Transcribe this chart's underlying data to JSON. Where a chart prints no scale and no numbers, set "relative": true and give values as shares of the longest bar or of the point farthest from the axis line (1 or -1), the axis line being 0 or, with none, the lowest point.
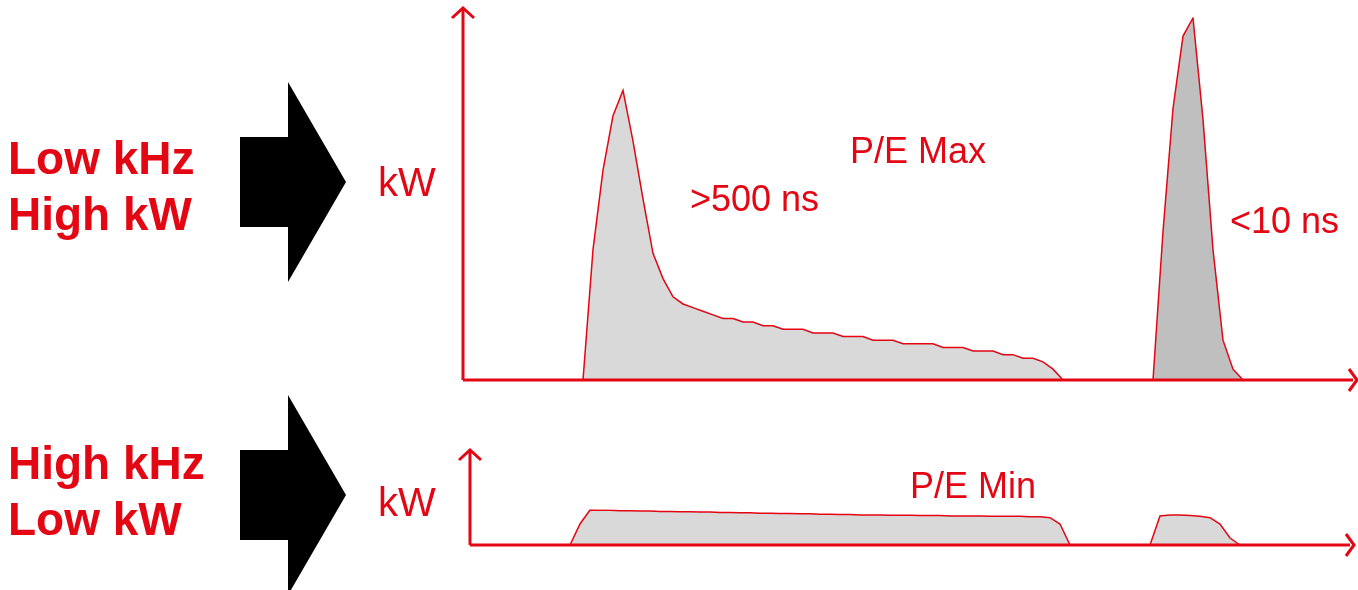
{
  "chart_data": [
    {
      "type": "area",
      "title": "Low kHz High kW",
      "ylabel": "kW",
      "relative": true,
      "marker": "none",
      "annotations": [
        ">500 ns",
        "P/E Max",
        "<10 ns"
      ],
      "categories": [
        null,
        null,
        null,
        null,
        null,
        null,
        null,
        null,
        null,
        null,
        null,
        null,
        null,
        null,
        null,
        null,
        null,
        null,
        null,
        null,
        null,
        null,
        null,
        null,
        null,
        null,
        null,
        null,
        null,
        null,
        null,
        null,
        null,
        null,
        null,
        null,
        null,
        null,
        null,
        null,
        null,
        null,
        null,
        null,
        null,
        null,
        null,
        null,
        null,
        null,
        null,
        null,
        null,
        null,
        null,
        null,
        null,
        null,
        null,
        null,
        null,
        null,
        null,
        null,
        null,
        null,
        null,
        null,
        null,
        null,
        null,
        null,
        null,
        null,
        null,
        null,
        null,
        null,
        null,
        null,
        null,
        null,
        null,
        null,
        null,
        null,
        null,
        null,
        null,
        null
      ],
      "series": [
        {
          "color": "#d9d9d9",
          "values": [
            null,
            null,
            null,
            null,
            null,
            null,
            null,
            null,
            null,
            null,
            null,
            null,
            0,
            0.36,
            0.58,
            0.73,
            0.8,
            0.66,
            0.5,
            0.35,
            0.28,
            0.23,
            0.21,
            0.2,
            0.19,
            0.18,
            0.17,
            0.17,
            0.16,
            0.16,
            0.15,
            0.15,
            0.14,
            0.14,
            0.14,
            0.13,
            0.13,
            0.13,
            0.12,
            0.12,
            0.12,
            0.11,
            0.11,
            0.11,
            0.1,
            0.1,
            0.1,
            0.1,
            0.09,
            0.09,
            0.09,
            0.08,
            0.08,
            0.08,
            0.07,
            0.07,
            0.06,
            0.06,
            0.05,
            0.03,
            0,
            null,
            null,
            null,
            null,
            null,
            null,
            null,
            null,
            null,
            null,
            null,
            null,
            null,
            null,
            null,
            null,
            null,
            null,
            null,
            null,
            null,
            null,
            null,
            null,
            null,
            null,
            null,
            null,
            null
          ]
        },
        {
          "color": "#bfbfbf",
          "values": [
            null,
            null,
            null,
            null,
            null,
            null,
            null,
            null,
            null,
            null,
            null,
            null,
            null,
            null,
            null,
            null,
            null,
            null,
            null,
            null,
            null,
            null,
            null,
            null,
            null,
            null,
            null,
            null,
            null,
            null,
            null,
            null,
            null,
            null,
            null,
            null,
            null,
            null,
            null,
            null,
            null,
            null,
            null,
            null,
            null,
            null,
            null,
            null,
            null,
            null,
            null,
            null,
            null,
            null,
            null,
            null,
            null,
            null,
            null,
            null,
            null,
            null,
            null,
            null,
            null,
            null,
            null,
            null,
            null,
            0,
            0.41,
            0.75,
            0.95,
            1,
            0.72,
            0.36,
            0.11,
            0.03,
            0,
            null,
            null,
            null,
            null,
            null,
            null,
            null,
            null,
            null,
            null,
            null
          ]
        }
      ]
    },
    {
      "type": "area",
      "title": "High kHz Low kW",
      "ylabel": "kW",
      "relative": true,
      "marker": "none",
      "annotations": [
        "P/E Min"
      ],
      "categories": [
        null,
        null,
        null,
        null,
        null,
        null,
        null,
        null,
        null,
        null,
        null,
        null,
        null,
        null,
        null,
        null,
        null,
        null,
        null,
        null,
        null,
        null,
        null,
        null,
        null,
        null,
        null,
        null,
        null,
        null,
        null,
        null,
        null,
        null,
        null,
        null,
        null,
        null,
        null,
        null,
        null,
        null,
        null,
        null,
        null,
        null,
        null,
        null,
        null,
        null,
        null,
        null,
        null,
        null,
        null,
        null,
        null,
        null,
        null,
        null,
        null,
        null,
        null,
        null,
        null,
        null,
        null,
        null,
        null,
        null,
        null,
        null,
        null,
        null,
        null,
        null,
        null,
        null,
        null,
        null,
        null,
        null,
        null,
        null,
        null,
        null,
        null,
        null,
        null
      ],
      "series": [
        {
          "color": "#d9d9d9",
          "values": [
            null,
            null,
            null,
            null,
            null,
            null,
            null,
            null,
            null,
            null,
            0,
            0.6,
            1,
            0.99,
            0.99,
            0.98,
            0.98,
            0.97,
            0.97,
            0.96,
            0.96,
            0.95,
            0.95,
            0.94,
            0.94,
            0.93,
            0.93,
            0.92,
            0.92,
            0.91,
            0.91,
            0.9,
            0.9,
            0.89,
            0.89,
            0.88,
            0.88,
            0.87,
            0.87,
            0.86,
            0.86,
            0.86,
            0.85,
            0.85,
            0.85,
            0.84,
            0.84,
            0.84,
            0.83,
            0.83,
            0.83,
            0.83,
            0.82,
            0.82,
            0.82,
            0.82,
            0.81,
            0.81,
            0.78,
            0.6,
            0,
            null,
            null,
            null,
            null,
            null,
            null,
            null,
            null,
            null,
            null,
            null,
            null,
            null,
            null,
            null,
            null,
            null,
            null,
            null,
            null,
            null,
            null,
            null,
            null,
            null,
            null,
            null,
            null
          ]
        },
        {
          "color": "#d9d9d9",
          "values": [
            null,
            null,
            null,
            null,
            null,
            null,
            null,
            null,
            null,
            null,
            null,
            null,
            null,
            null,
            null,
            null,
            null,
            null,
            null,
            null,
            null,
            null,
            null,
            null,
            null,
            null,
            null,
            null,
            null,
            null,
            null,
            null,
            null,
            null,
            null,
            null,
            null,
            null,
            null,
            null,
            null,
            null,
            null,
            null,
            null,
            null,
            null,
            null,
            null,
            null,
            null,
            null,
            null,
            null,
            null,
            null,
            null,
            null,
            null,
            null,
            null,
            null,
            null,
            null,
            null,
            null,
            null,
            null,
            0,
            0.83,
            0.86,
            0.86,
            0.84,
            0.82,
            0.78,
            0.6,
            0.2,
            0,
            null,
            null,
            null,
            null,
            null,
            null,
            null,
            null,
            null,
            null,
            null
          ]
        }
      ]
    }
  ]
}
